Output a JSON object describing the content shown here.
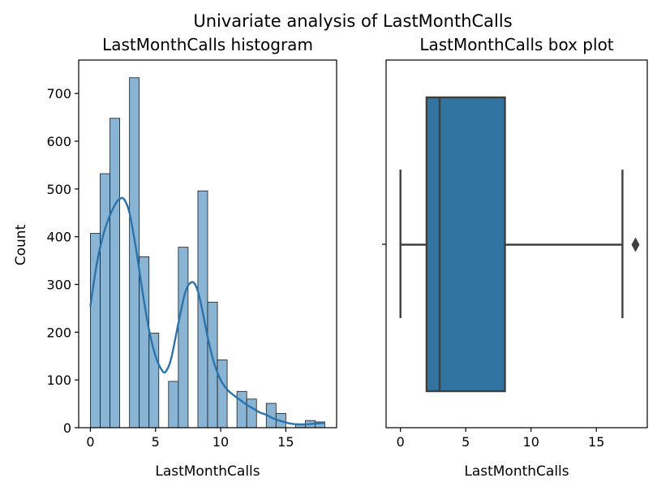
{
  "figure": {
    "title": "Univariate analysis of LastMonthCalls"
  },
  "chart_data": [
    {
      "type": "bar",
      "title": "LastMonthCalls histogram",
      "xlabel": "LastMonthCalls",
      "ylabel": "Count",
      "xlim": [
        -0.9,
        18.9
      ],
      "ylim": [
        0,
        770
      ],
      "xticks": [
        0,
        5,
        10,
        15
      ],
      "yticks": [
        0,
        100,
        200,
        300,
        400,
        500,
        600,
        700
      ],
      "bin_width": 0.75,
      "bin_starts": [
        0,
        0.75,
        1.5,
        2.25,
        3,
        3.75,
        4.5,
        5.25,
        6,
        6.75,
        7.5,
        8.25,
        9,
        9.75,
        10.5,
        11.25,
        12,
        12.75,
        13.5,
        14.25,
        15,
        15.75,
        16.5,
        17.25
      ],
      "values": [
        407,
        532,
        648,
        0,
        733,
        358,
        198,
        0,
        97,
        378,
        0,
        496,
        263,
        142,
        0,
        76,
        60,
        0,
        51,
        30,
        0,
        8,
        15,
        12
      ],
      "kde": {
        "color": "#2b73ad",
        "x": [
          0,
          0.5,
          1,
          1.5,
          2,
          2.3,
          2.6,
          3,
          3.5,
          4,
          4.5,
          5,
          5.5,
          5.8,
          6.2,
          6.8,
          7.3,
          7.8,
          8.2,
          8.6,
          9,
          9.5,
          10,
          10.5,
          11,
          11.5,
          12,
          12.5,
          13,
          13.5,
          14,
          14.5,
          15,
          15.5,
          16,
          16.5,
          17,
          17.5,
          18
        ],
        "y": [
          255,
          345,
          405,
          445,
          472,
          480,
          478,
          450,
          375,
          285,
          205,
          150,
          120,
          118,
          145,
          225,
          285,
          305,
          290,
          245,
          190,
          135,
          100,
          80,
          68,
          58,
          48,
          40,
          32,
          27,
          20,
          15,
          11,
          8,
          7,
          7,
          8,
          9,
          10
        ]
      }
    },
    {
      "type": "box",
      "title": "LastMonthCalls box plot",
      "xlabel": "LastMonthCalls",
      "xlim": [
        -1.1,
        18.9
      ],
      "xticks": [
        0,
        5,
        10,
        15
      ],
      "color": "#3274a1",
      "whisker_low": 0,
      "q1": 2,
      "median": 3,
      "q3": 8,
      "whisker_high": 17,
      "outliers": [
        18
      ]
    }
  ]
}
